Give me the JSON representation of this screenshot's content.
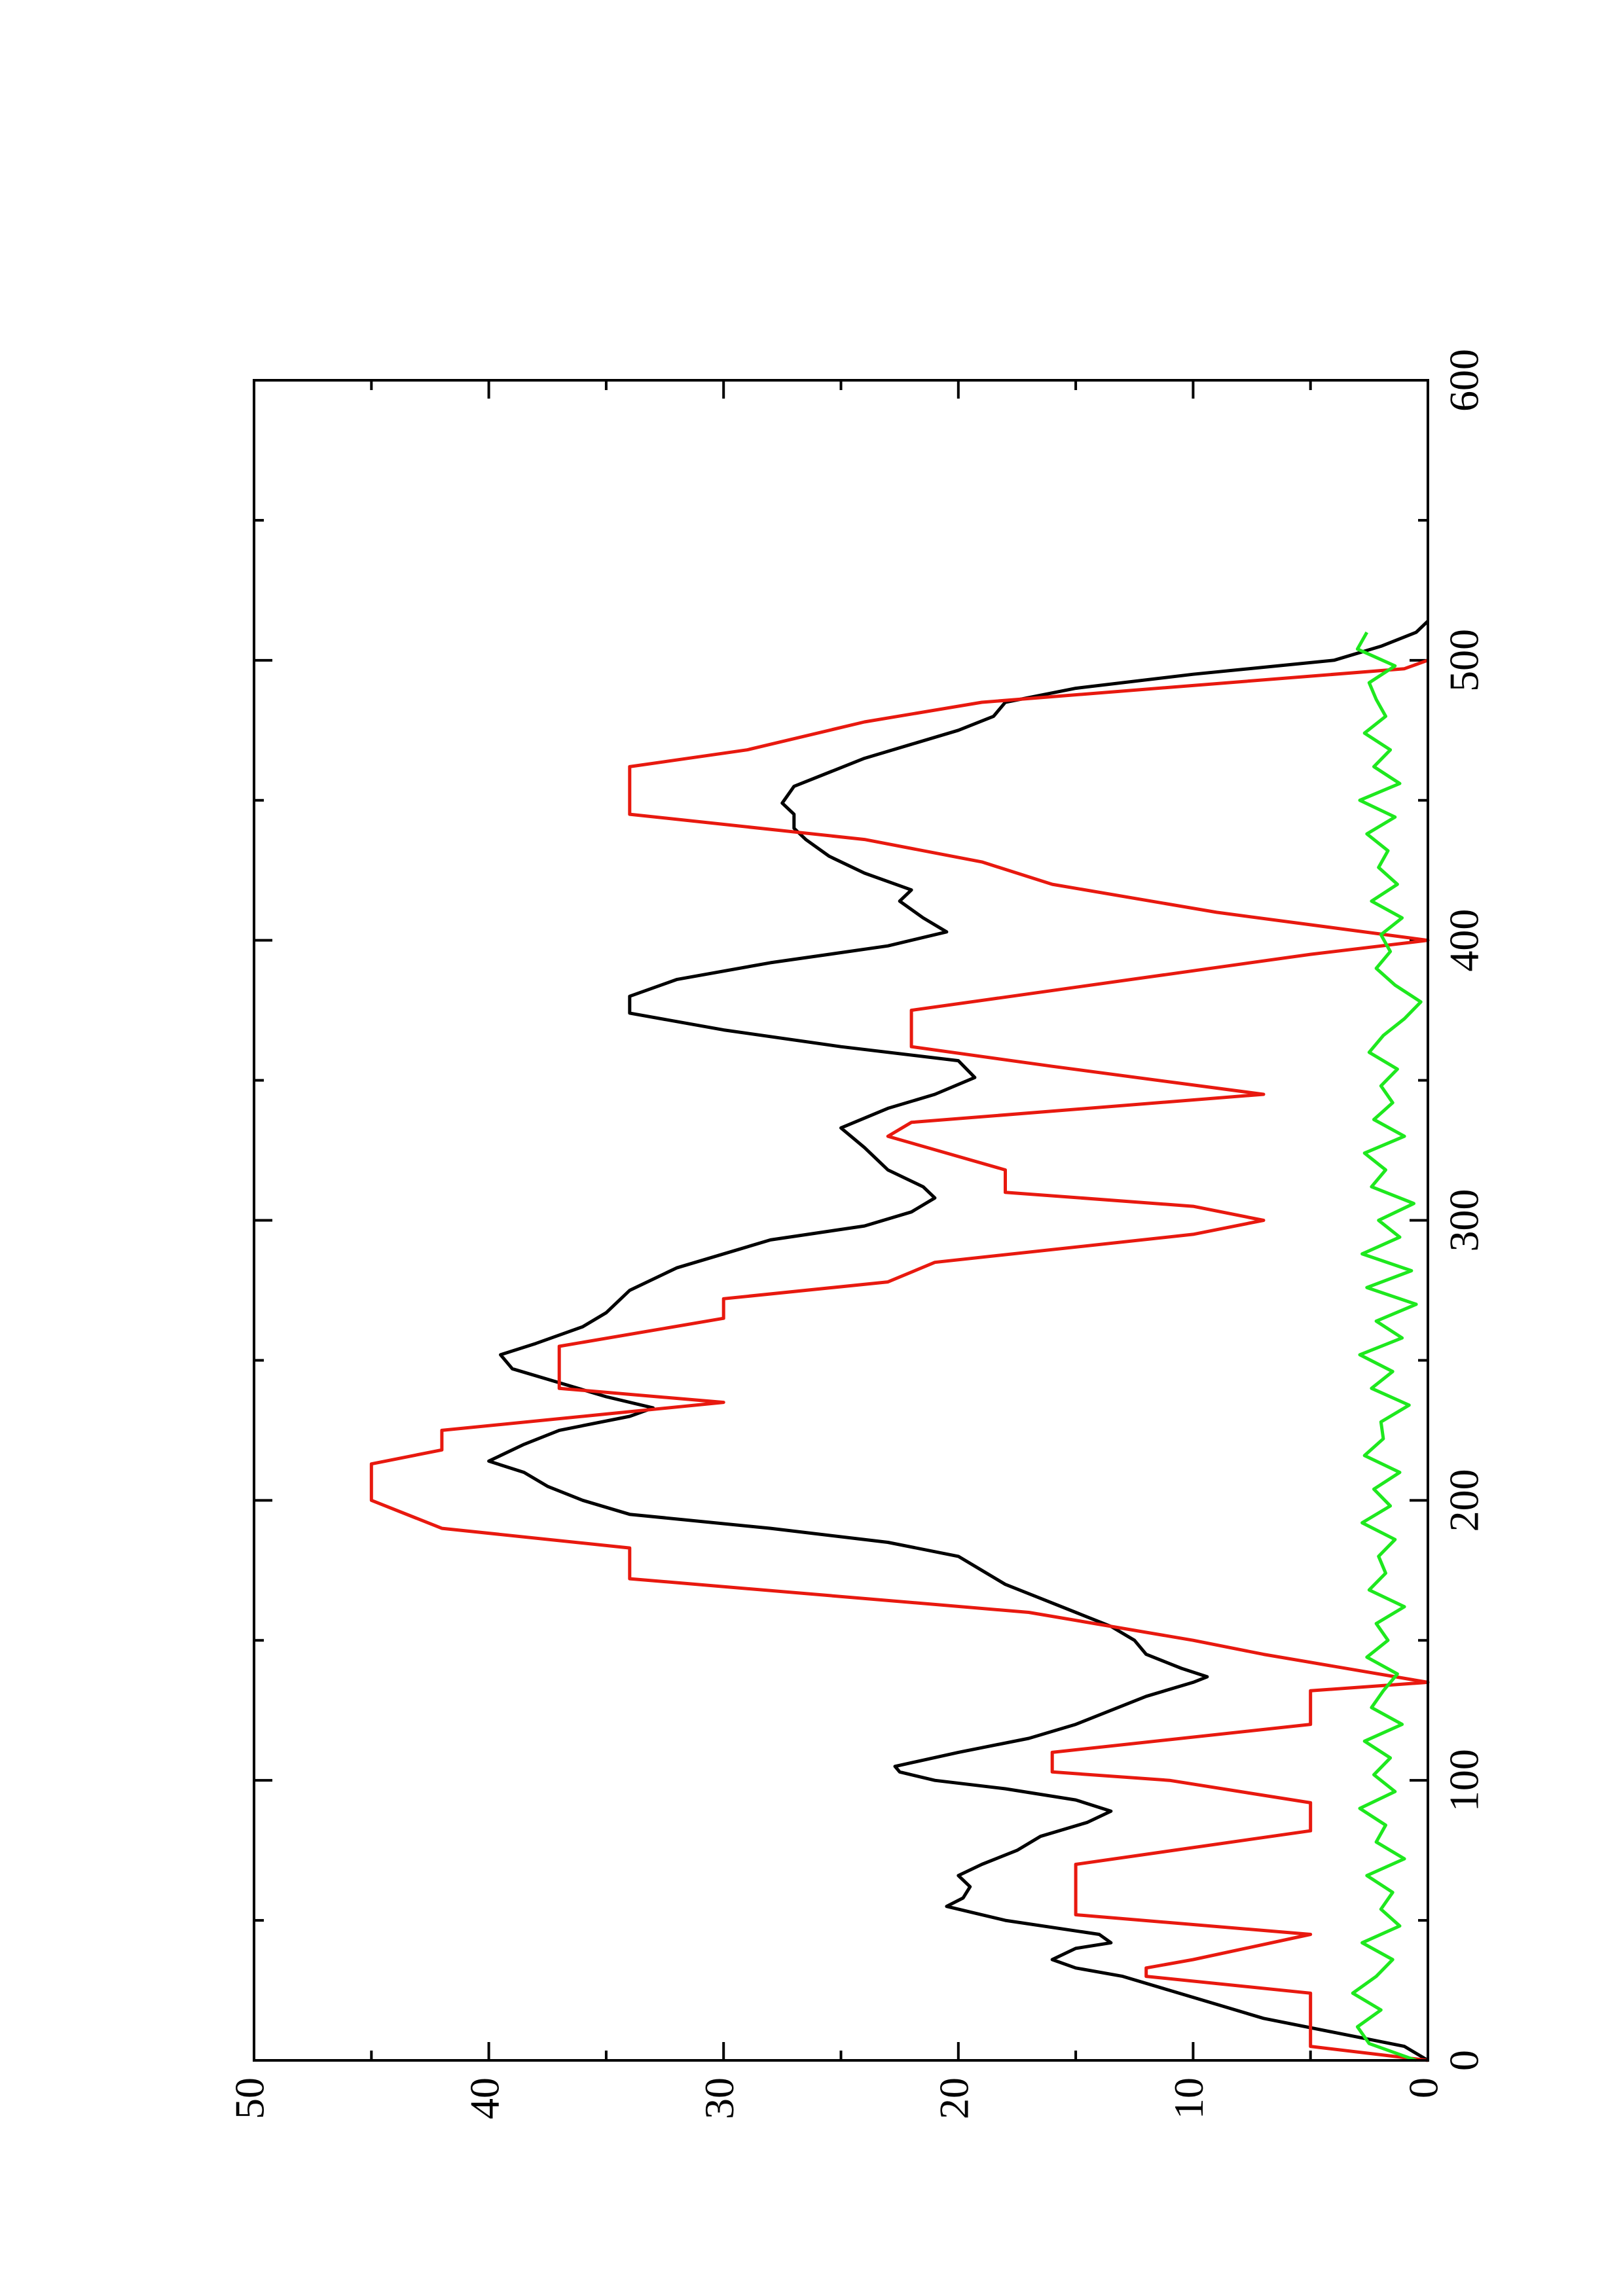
{
  "chart_data": {
    "type": "line",
    "xlim": [
      0,
      600
    ],
    "ylim": [
      0,
      50
    ],
    "xticks": [
      0,
      100,
      200,
      300,
      400,
      500,
      600
    ],
    "yticks": [
      0,
      10,
      20,
      30,
      40,
      50
    ],
    "series": [
      {
        "color": "#000000",
        "x": [
          0,
          5,
          10,
          15,
          20,
          25,
          30,
          33,
          36,
          40,
          42,
          45,
          50,
          55,
          58,
          62,
          66,
          70,
          75,
          80,
          85,
          89,
          93,
          97,
          100,
          103,
          105,
          110,
          115,
          120,
          125,
          130,
          135,
          137,
          140,
          145,
          150,
          155,
          160,
          165,
          170,
          175,
          180,
          185,
          190,
          195,
          200,
          205,
          210,
          214,
          220,
          225,
          230,
          233,
          237,
          242,
          247,
          252,
          256,
          262,
          267,
          275,
          283,
          288,
          293,
          298,
          303,
          308,
          312,
          318,
          326,
          333,
          340,
          345,
          351,
          357,
          362,
          368,
          374,
          380,
          386,
          392,
          398,
          403,
          408,
          414,
          418,
          424,
          430,
          436,
          440,
          445,
          449,
          455,
          460,
          465,
          470,
          475,
          480,
          485,
          490,
          495,
          500,
          505,
          510,
          514
        ],
        "values": [
          0,
          1,
          4,
          7,
          9,
          11,
          13,
          15,
          16,
          15,
          13.5,
          14,
          18,
          20.5,
          19.8,
          19.5,
          20,
          19,
          17.5,
          16.5,
          14.5,
          13.5,
          15,
          18,
          21,
          22.5,
          22.7,
          20,
          17,
          15,
          13.5,
          12,
          10,
          9.4,
          10.5,
          12,
          12.5,
          13.5,
          15,
          16.5,
          18,
          19,
          20,
          23,
          28,
          34,
          36,
          37.5,
          38.5,
          40,
          38.5,
          37,
          34,
          33,
          35,
          37,
          39,
          39.5,
          38,
          36,
          35,
          34,
          32,
          30,
          28,
          24,
          22,
          21,
          21.5,
          23,
          24,
          25,
          23,
          21,
          19.3,
          20,
          25,
          30,
          34,
          34,
          32,
          28,
          23,
          20.5,
          21.5,
          22.5,
          22,
          24,
          25.5,
          26.5,
          27,
          27,
          27.5,
          27,
          25.5,
          24,
          22,
          20,
          18.5,
          18,
          15,
          10,
          4,
          2,
          0.5,
          0
        ]
      },
      {
        "color": "#e8190f",
        "x": [
          0,
          5,
          24,
          30,
          33,
          36,
          45,
          52,
          70,
          82,
          92,
          100,
          103,
          110,
          120,
          132,
          135,
          145,
          150,
          160,
          172,
          183,
          190,
          200,
          213,
          218,
          225,
          235,
          240,
          255,
          265,
          272,
          278,
          285,
          295,
          300,
          305,
          310,
          318,
          330,
          335,
          345,
          355,
          362,
          375,
          395,
          400,
          410,
          420,
          428,
          436,
          445,
          462,
          468,
          478,
          485,
          497,
          500
        ],
        "values": [
          0,
          5,
          5,
          12,
          12,
          10,
          5,
          15,
          15,
          5,
          5,
          11,
          16,
          16,
          5,
          5,
          0,
          7,
          10,
          17,
          34,
          34,
          42,
          45,
          45,
          42,
          42,
          30,
          37,
          37,
          30,
          30,
          23,
          21,
          10,
          7,
          10,
          18,
          18,
          23,
          22,
          7,
          16,
          22,
          22,
          5,
          0,
          9,
          16,
          19,
          24,
          34,
          34,
          29,
          24,
          19,
          1,
          0
        ]
      },
      {
        "color": "#1ee81e",
        "x": [
          0,
          6,
          12,
          18,
          24,
          30,
          36,
          42,
          48,
          54,
          60,
          66,
          72,
          78,
          84,
          90,
          96,
          102,
          108,
          114,
          120,
          126,
          132,
          138,
          144,
          150,
          156,
          162,
          168,
          174,
          180,
          186,
          192,
          198,
          204,
          210,
          216,
          222,
          228,
          234,
          240,
          246,
          252,
          258,
          264,
          270,
          276,
          282,
          288,
          294,
          300,
          306,
          312,
          318,
          324,
          330,
          336,
          342,
          348,
          354,
          360,
          366,
          372,
          378,
          384,
          390,
          396,
          402,
          408,
          414,
          420,
          426,
          432,
          438,
          444,
          450,
          456,
          462,
          468,
          474,
          480,
          486,
          492,
          498,
          504,
          510
        ],
        "values": [
          0.5,
          2.5,
          3.0,
          2.0,
          3.2,
          2.2,
          1.5,
          2.8,
          1.2,
          2.0,
          1.5,
          2.6,
          1.0,
          2.2,
          1.8,
          2.9,
          1.4,
          2.3,
          1.6,
          2.7,
          1.1,
          2.4,
          1.9,
          1.3,
          2.6,
          1.7,
          2.2,
          1.0,
          2.5,
          1.8,
          2.1,
          1.4,
          2.8,
          1.6,
          2.3,
          1.2,
          2.7,
          1.9,
          2.0,
          0.8,
          2.4,
          1.5,
          2.9,
          1.1,
          2.2,
          0.5,
          2.6,
          0.7,
          2.8,
          1.2,
          2.1,
          0.6,
          2.4,
          1.8,
          2.7,
          1.0,
          2.3,
          1.5,
          2.0,
          1.3,
          2.5,
          1.9,
          1.0,
          0.3,
          1.4,
          2.2,
          1.6,
          2.0,
          1.1,
          2.4,
          1.3,
          2.1,
          1.7,
          2.6,
          1.4,
          2.9,
          1.2,
          2.3,
          1.6,
          2.7,
          1.8,
          2.2,
          2.5,
          1.4,
          3.0,
          2.6
        ]
      }
    ]
  }
}
